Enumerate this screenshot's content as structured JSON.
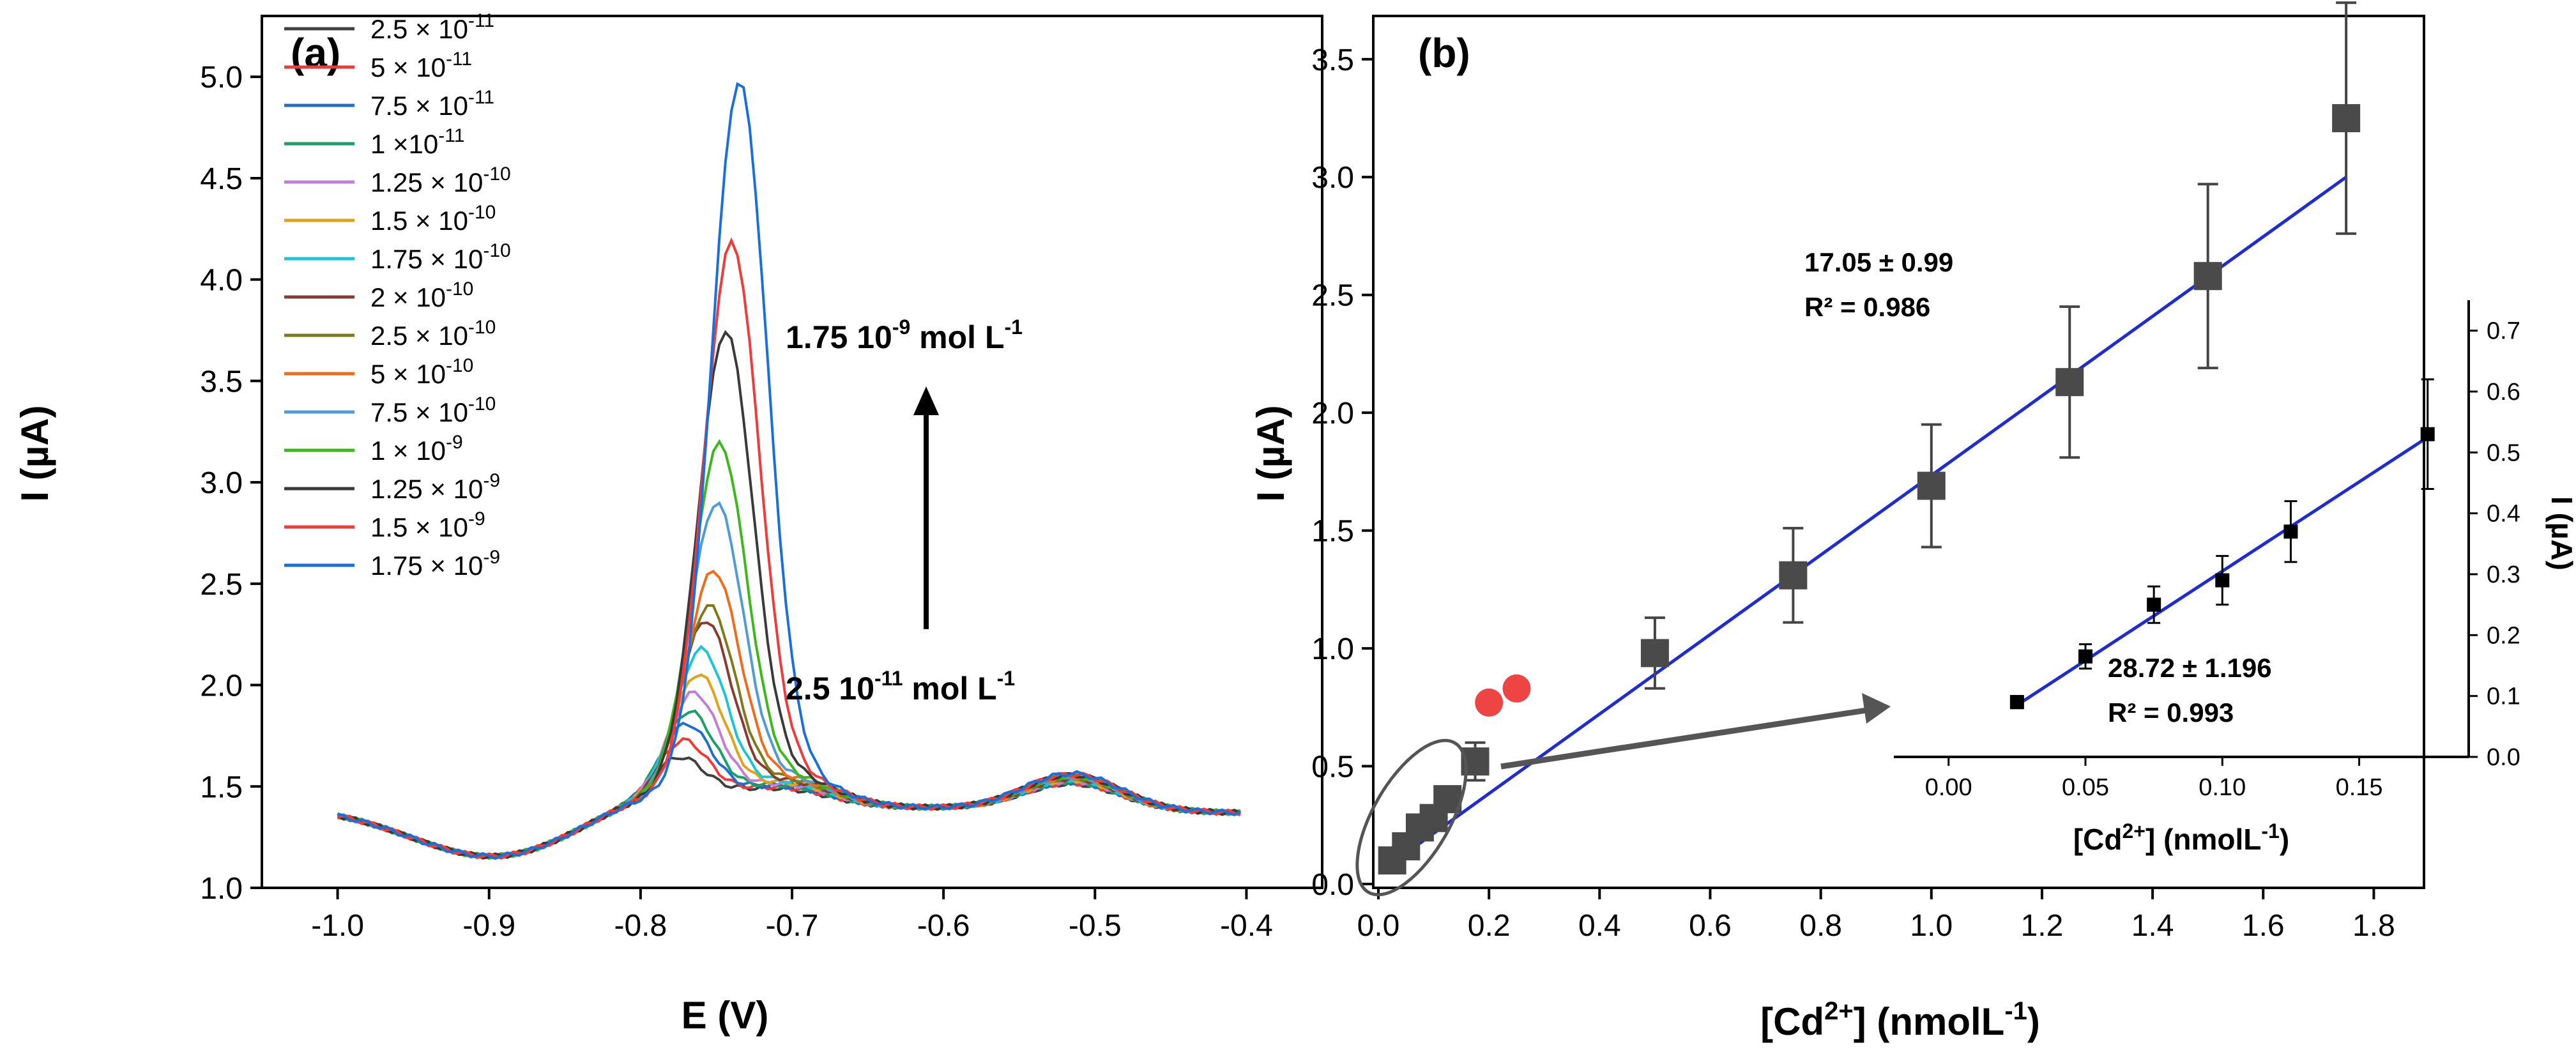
{
  "chart_data": [
    {
      "panel": "(a)",
      "type": "line",
      "xlabel": "E (V)",
      "ylabel": "I (µA)",
      "xlim": [
        -1.05,
        -0.35
      ],
      "ylim": [
        1.0,
        5.3
      ],
      "xticks": [
        "-1.0",
        "-0.9",
        "-0.8",
        "-0.7",
        "-0.6",
        "-0.5",
        "-0.4"
      ],
      "yticks": [
        "1.0",
        "1.5",
        "2.0",
        "2.5",
        "3.0",
        "3.5",
        "4.0",
        "4.5",
        "5.0"
      ],
      "arrow_top_label": "1.75 10-9 mol L-1",
      "arrow_bottom_label": "2.5 10-11 mol L-1",
      "arrow_top": {
        "base": "1.75 10",
        "exp": "-9",
        "unit": " mol L",
        "uexp": "-1"
      },
      "arrow_bottom": {
        "base": "2.5 10",
        "exp": "-11",
        "unit": " mol L",
        "uexp": "-1"
      },
      "series": [
        {
          "name": "2.5 × 10-11",
          "base": "2.5 × 10",
          "exp": "-11",
          "color": "#404040",
          "peak": 1.47,
          "peak_e": -0.775
        },
        {
          "name": "5 × 10-11",
          "base": "5 × 10",
          "exp": "-11",
          "color": "#ef3a3a",
          "peak": 1.55,
          "peak_e": -0.772
        },
        {
          "name": "7.5 × 10-11",
          "base": "7.5 × 10",
          "exp": "-11",
          "color": "#1f6fd0",
          "peak": 1.63,
          "peak_e": -0.77
        },
        {
          "name": "1 ×10-11",
          "base": "1 ×10",
          "exp": "-11",
          "color": "#1aa067",
          "peak": 1.69,
          "peak_e": -0.768
        },
        {
          "name": "1.25 × 10-10",
          "base": "1.25 × 10",
          "exp": "-10",
          "color": "#c27ed6",
          "peak": 1.78,
          "peak_e": -0.765
        },
        {
          "name": "1.5 × 10-10",
          "base": "1.5 × 10",
          "exp": "-10",
          "color": "#e0a21a",
          "peak": 1.87,
          "peak_e": -0.762
        },
        {
          "name": "1.75 × 10-10",
          "base": "1.75 × 10",
          "exp": "-10",
          "color": "#19c6d6",
          "peak": 1.99,
          "peak_e": -0.76
        },
        {
          "name": "2 × 10-10",
          "base": "2 × 10",
          "exp": "-10",
          "color": "#8a3b30",
          "peak": 2.13,
          "peak_e": -0.757
        },
        {
          "name": "2.5 × 10-10",
          "base": "2.5 × 10",
          "exp": "-10",
          "color": "#7f7a1a",
          "peak": 2.2,
          "peak_e": -0.755
        },
        {
          "name": "5 × 10-10",
          "base": "5 × 10",
          "exp": "-10",
          "color": "#f26b1a",
          "peak": 2.37,
          "peak_e": -0.752
        },
        {
          "name": "7.5 × 10-10",
          "base": "7.5 × 10",
          "exp": "-10",
          "color": "#4f9bd6",
          "peak": 2.7,
          "peak_e": -0.75
        },
        {
          "name": "1 × 10-9",
          "base": "1 × 10",
          "exp": "-9",
          "color": "#3bb81a",
          "peak": 2.99,
          "peak_e": -0.748
        },
        {
          "name": "1.25 × 10-9",
          "base": "1.25 × 10",
          "exp": "-9",
          "color": "#3a3a3a",
          "peak": 3.54,
          "peak_e": -0.744
        },
        {
          "name": "1.5 × 10-9",
          "base": "1.5 × 10",
          "exp": "-9",
          "color": "#f23a3a",
          "peak": 3.97,
          "peak_e": -0.74
        },
        {
          "name": "1.75 × 10-9",
          "base": "1.75 × 10",
          "exp": "-9",
          "color": "#1a6fe0",
          "peak": 4.75,
          "peak_e": -0.735
        }
      ]
    },
    {
      "panel": "(b)",
      "type": "scatter",
      "xlabel": "[Cd2+] (nmolL-1)",
      "ylabel": "I (µA)",
      "xlim": [
        0.0,
        1.9
      ],
      "ylim": [
        0.0,
        3.7
      ],
      "xticks": [
        "0.0",
        "0.2",
        "0.4",
        "0.6",
        "0.8",
        "1.0",
        "1.2",
        "1.4",
        "1.6",
        "1.8"
      ],
      "yticks": [
        "0.0",
        "0.5",
        "1.0",
        "1.5",
        "2.0",
        "2.5",
        "3.0",
        "3.5"
      ],
      "fit_slope_text": "17.05 ± 0.99",
      "fit_r2_text": "R² = 0.986",
      "points": [
        {
          "x": 0.025,
          "y": 0.1,
          "err": 0.02
        },
        {
          "x": 0.05,
          "y": 0.16,
          "err": 0.02
        },
        {
          "x": 0.075,
          "y": 0.24,
          "err": 0.03
        },
        {
          "x": 0.1,
          "y": 0.28,
          "err": 0.03
        },
        {
          "x": 0.125,
          "y": 0.36,
          "err": 0.03
        },
        {
          "x": 0.175,
          "y": 0.52,
          "err": 0.08
        },
        {
          "x": 0.5,
          "y": 0.98,
          "err": 0.15
        },
        {
          "x": 0.75,
          "y": 1.31,
          "err": 0.2
        },
        {
          "x": 1.0,
          "y": 1.69,
          "err": 0.26
        },
        {
          "x": 1.25,
          "y": 2.13,
          "err": 0.32
        },
        {
          "x": 1.5,
          "y": 2.58,
          "err": 0.39
        },
        {
          "x": 1.75,
          "y": 3.25,
          "err": 0.49
        }
      ],
      "outliers": [
        {
          "x": 0.2,
          "y": 0.77
        },
        {
          "x": 0.25,
          "y": 0.83
        }
      ],
      "fit_line": {
        "x": [
          0.02,
          1.75
        ],
        "y": [
          0.08,
          3.0
        ]
      },
      "inset": {
        "xlabel": "[Cd2+] (nmolL-1)",
        "ylabel": "I (µA)",
        "xlim": [
          -0.02,
          0.19
        ],
        "ylim": [
          0.0,
          0.75
        ],
        "xticks": [
          "0.00",
          "0.05",
          "0.10",
          "0.15"
        ],
        "yticks": [
          "0.0",
          "0.1",
          "0.2",
          "0.3",
          "0.4",
          "0.5",
          "0.6",
          "0.7"
        ],
        "fit_slope_text": "28.72 ± 1.196",
        "fit_r2_text": "R² = 0.993",
        "points": [
          {
            "x": 0.025,
            "y": 0.09,
            "err": 0.01
          },
          {
            "x": 0.05,
            "y": 0.165,
            "err": 0.02
          },
          {
            "x": 0.075,
            "y": 0.25,
            "err": 0.03
          },
          {
            "x": 0.1,
            "y": 0.29,
            "err": 0.04
          },
          {
            "x": 0.125,
            "y": 0.37,
            "err": 0.05
          },
          {
            "x": 0.175,
            "y": 0.53,
            "err": 0.09
          }
        ],
        "fit_line": {
          "x": [
            0.025,
            0.175
          ],
          "y": [
            0.085,
            0.525
          ]
        }
      }
    }
  ]
}
